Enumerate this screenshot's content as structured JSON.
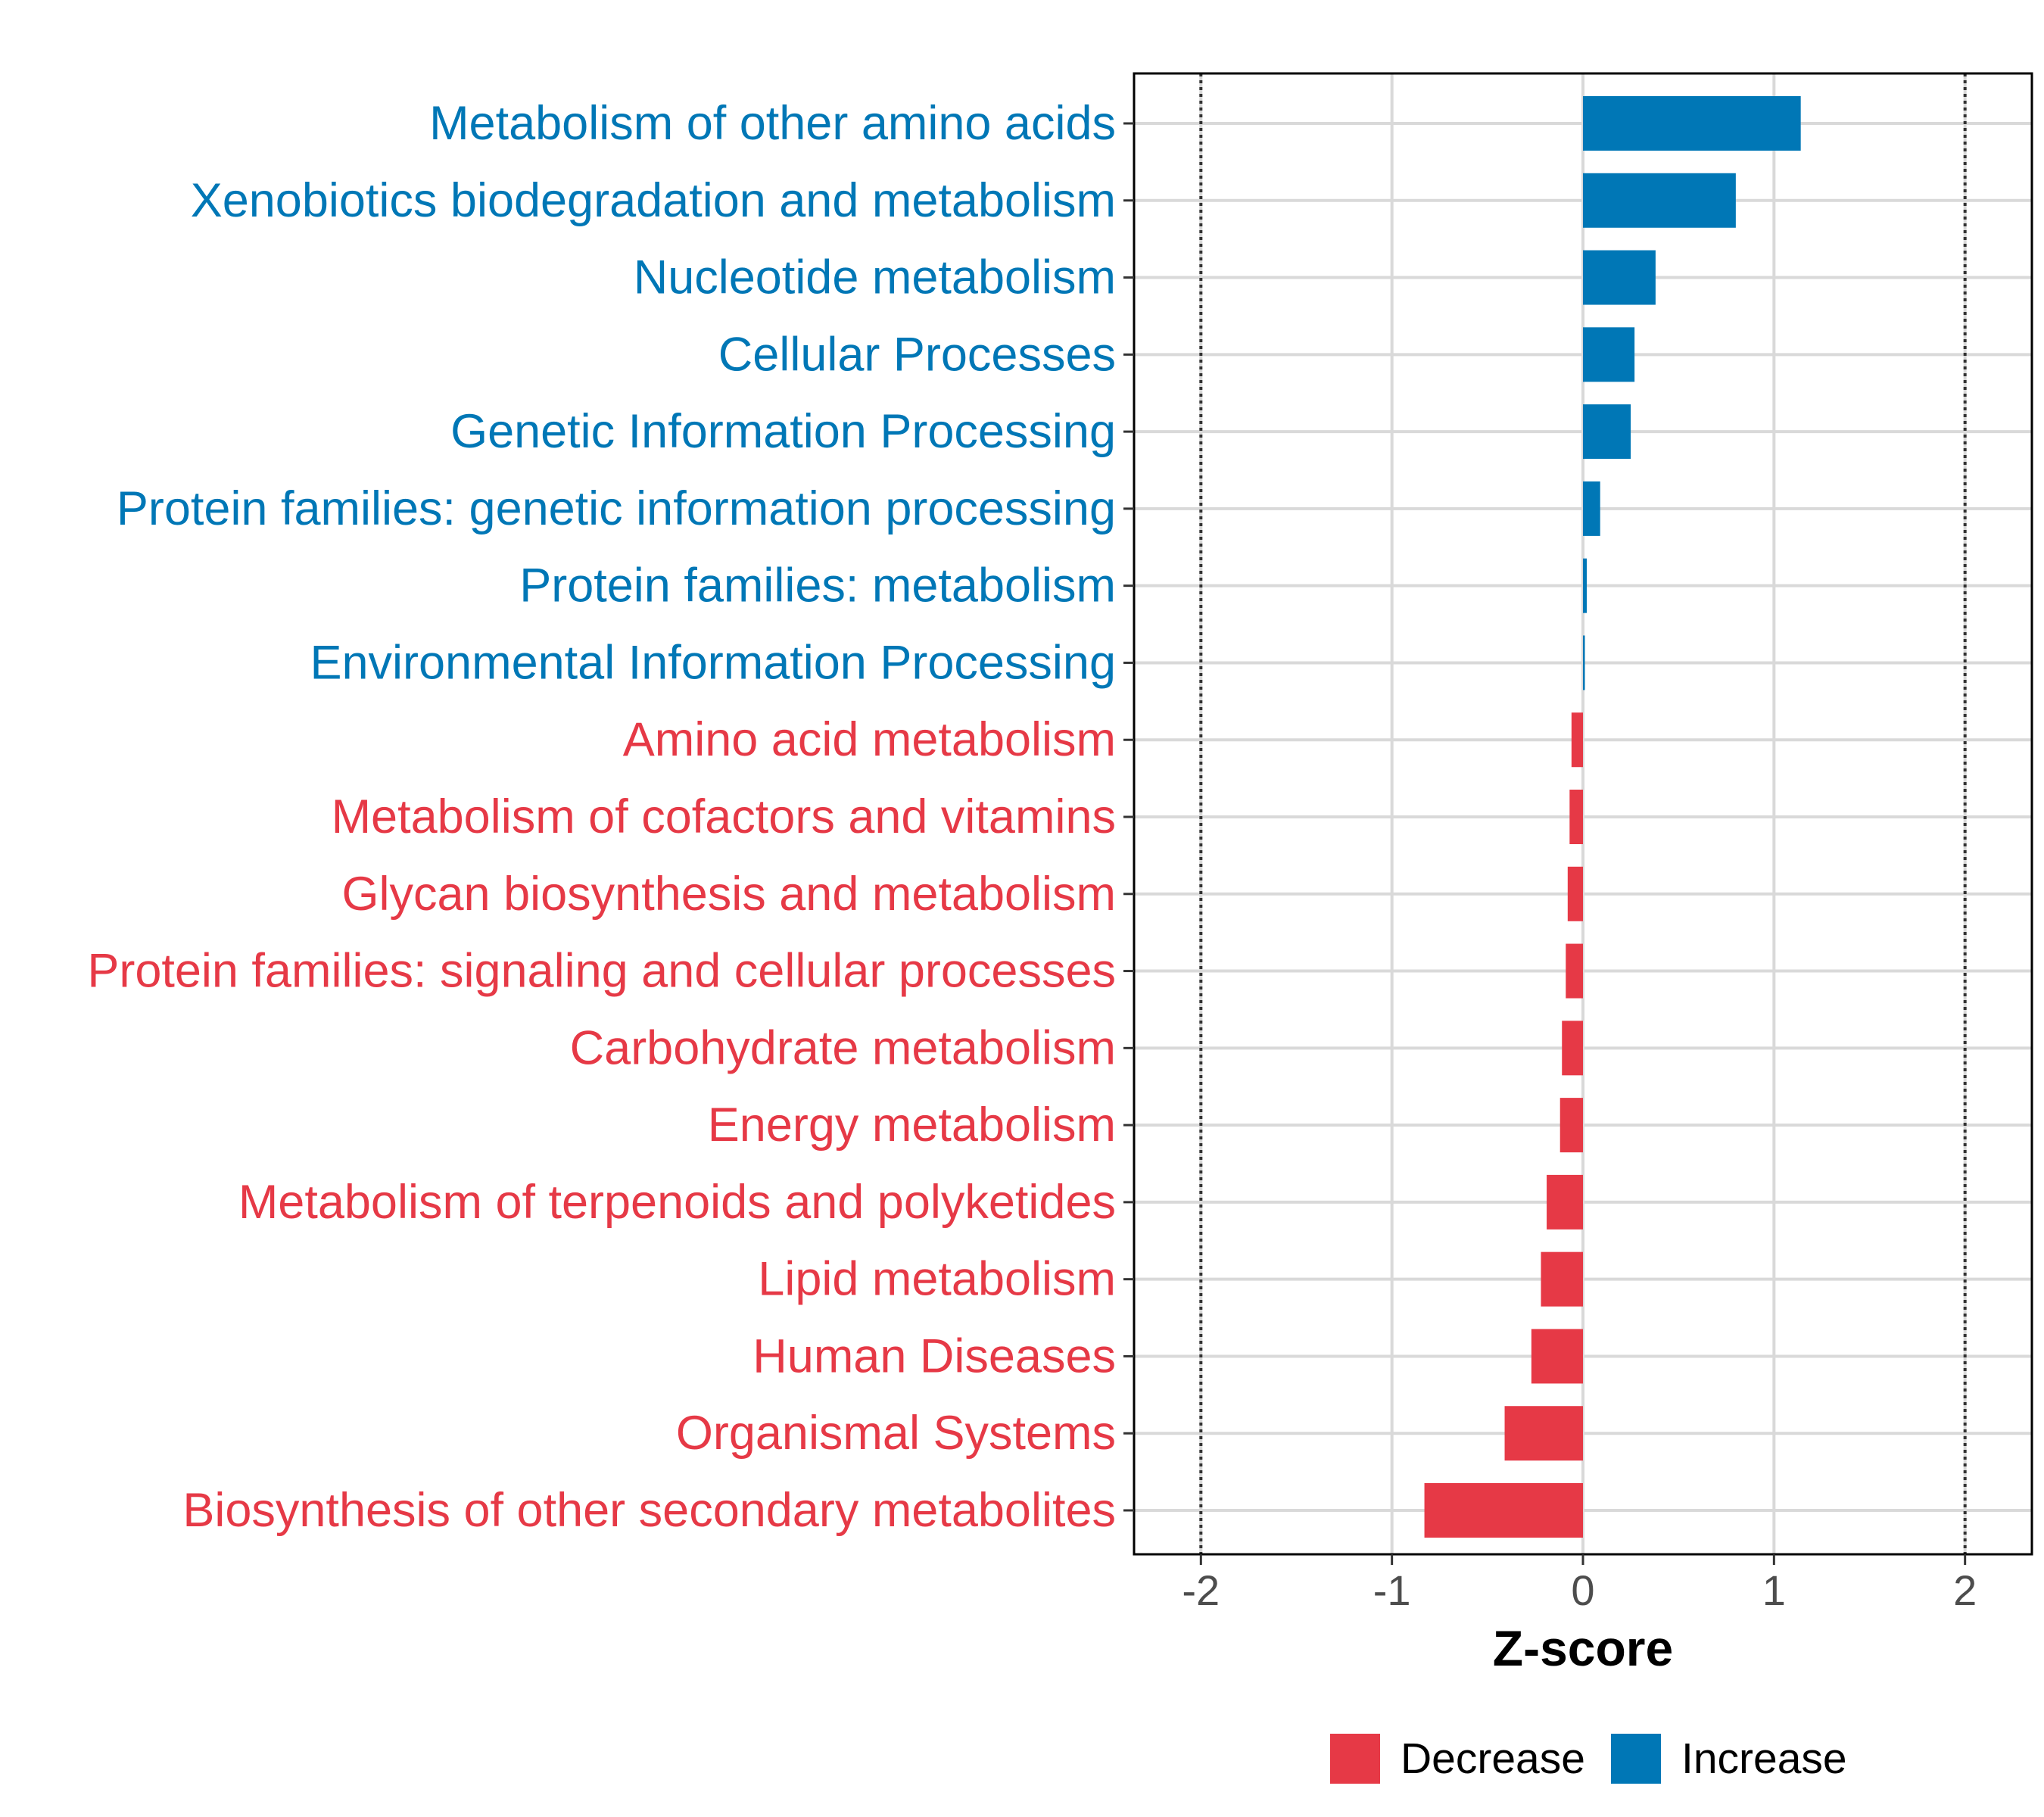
{
  "chart_data": {
    "type": "bar",
    "orientation": "horizontal",
    "xlabel": "Z-score",
    "xlim": [
      -2.35,
      2.35
    ],
    "xticks": [
      -2,
      -1,
      0,
      1,
      2
    ],
    "xtick_labels": [
      "-2",
      "-1",
      "0",
      "1",
      "2"
    ],
    "reference_lines": [
      -2,
      2
    ],
    "grid": true,
    "colors": {
      "Decrease": "#e63946",
      "Increase": "#0077b6"
    },
    "categories": [
      "Metabolism of other amino acids",
      "Xenobiotics biodegradation and metabolism",
      "Nucleotide metabolism",
      "Cellular Processes",
      "Genetic Information Processing",
      "Protein families: genetic information processing",
      "Protein families: metabolism",
      "Environmental Information Processing",
      "Amino acid metabolism",
      "Metabolism of cofactors and vitamins",
      "Glycan biosynthesis and metabolism",
      "Protein families: signaling and cellular processes",
      "Carbohydrate metabolism",
      "Energy metabolism",
      "Metabolism of terpenoids and polyketides",
      "Lipid metabolism",
      "Human Diseases",
      "Organismal Systems",
      "Biosynthesis of other secondary metabolites"
    ],
    "values": [
      1.14,
      0.8,
      0.38,
      0.27,
      0.25,
      0.09,
      0.02,
      0.01,
      -0.06,
      -0.07,
      -0.08,
      -0.09,
      -0.11,
      -0.12,
      -0.19,
      -0.22,
      -0.27,
      -0.41,
      -0.83
    ],
    "groups": [
      "Increase",
      "Increase",
      "Increase",
      "Increase",
      "Increase",
      "Increase",
      "Increase",
      "Increase",
      "Decrease",
      "Decrease",
      "Decrease",
      "Decrease",
      "Decrease",
      "Decrease",
      "Decrease",
      "Decrease",
      "Decrease",
      "Decrease",
      "Decrease"
    ],
    "legend": {
      "position": "bottom",
      "entries": [
        "Decrease",
        "Increase"
      ]
    }
  }
}
